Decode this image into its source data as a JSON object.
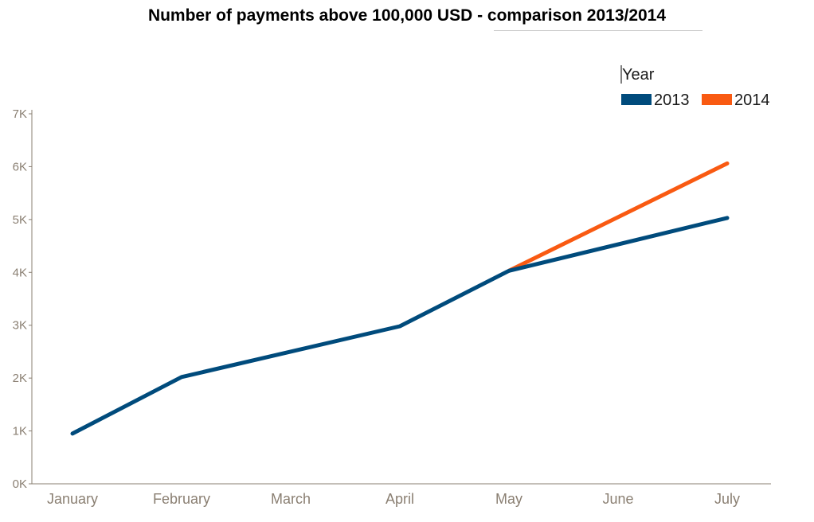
{
  "chart_data": {
    "type": "line",
    "title": "Number of payments above 100,000 USD - comparison 2013/2014",
    "xlabel": "",
    "ylabel": "",
    "categories": [
      "January",
      "February",
      "March",
      "April",
      "May",
      "June",
      "July"
    ],
    "x_positions": [
      0,
      1,
      2,
      3,
      4,
      5,
      6
    ],
    "ylim": [
      0,
      7000
    ],
    "yticks": [
      0,
      1000,
      2000,
      3000,
      4000,
      5000,
      6000,
      7000
    ],
    "ytick_labels": [
      "0K",
      "1K",
      "2K",
      "3K",
      "4K",
      "5K",
      "6K",
      "7K"
    ],
    "legend_title": "Year",
    "legend_position": "top-right",
    "grid": false,
    "series": [
      {
        "name": "2013",
        "color": "#004b7c",
        "points": [
          {
            "x": "January",
            "y": 950
          },
          {
            "x": "February",
            "y": 2020
          },
          {
            "x": "April",
            "y": 2980
          },
          {
            "x": "May",
            "y": 4030
          },
          {
            "x": "July",
            "y": 5030
          }
        ]
      },
      {
        "name": "2014",
        "color": "#f95a12",
        "points": [
          {
            "x": "May",
            "y": 4030
          },
          {
            "x": "July",
            "y": 6060
          }
        ]
      }
    ]
  }
}
